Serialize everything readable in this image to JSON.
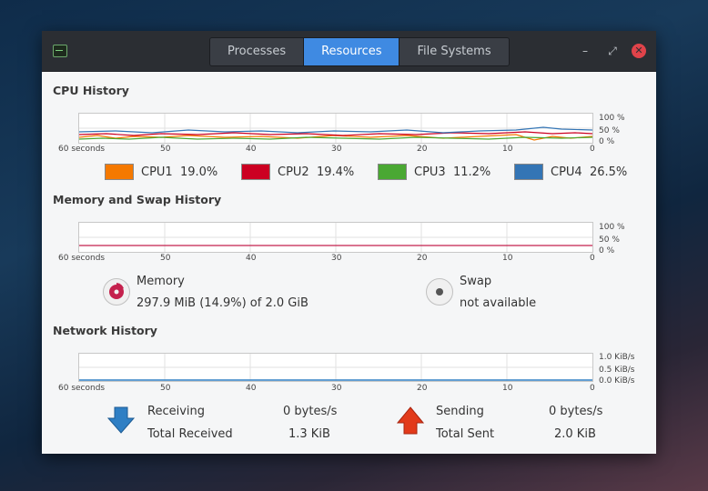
{
  "tabs": [
    {
      "label": "Processes",
      "active": false
    },
    {
      "label": "Resources",
      "active": true
    },
    {
      "label": "File Systems",
      "active": false
    }
  ],
  "window_controls": {
    "minimize": "–",
    "maximize": "⤢",
    "close": "✕"
  },
  "cpu": {
    "title": "CPU History",
    "x_labels": [
      "60 seconds",
      "50",
      "40",
      "30",
      "20",
      "10",
      "0"
    ],
    "y_labels": [
      "100 %",
      "50 %",
      "0 %"
    ],
    "legend": [
      {
        "name": "CPU1",
        "value": "19.0%",
        "color": "#f57900"
      },
      {
        "name": "CPU2",
        "value": "19.4%",
        "color": "#cc0022"
      },
      {
        "name": "CPU3",
        "value": "11.2%",
        "color": "#4aa833"
      },
      {
        "name": "CPU4",
        "value": "26.5%",
        "color": "#3475b5"
      }
    ]
  },
  "memory": {
    "title": "Memory and Swap History",
    "x_labels": [
      "60 seconds",
      "50",
      "40",
      "30",
      "20",
      "10",
      "0"
    ],
    "y_labels": [
      "100 %",
      "50 %",
      "0 %"
    ],
    "memory_label": "Memory",
    "memory_value": "297.9 MiB (14.9%) of 2.0 GiB",
    "memory_color": "#c4214d",
    "swap_label": "Swap",
    "swap_value": "not available"
  },
  "network": {
    "title": "Network History",
    "x_labels": [
      "60 seconds",
      "50",
      "40",
      "30",
      "20",
      "10",
      "0"
    ],
    "y_labels": [
      "1.0 KiB/s",
      "0.5 KiB/s",
      "0.0 KiB/s"
    ],
    "receiving_label": "Receiving",
    "receiving_value": "0 bytes/s",
    "total_received_label": "Total Received",
    "total_received_value": "1.3 KiB",
    "sending_label": "Sending",
    "sending_value": "0 bytes/s",
    "total_sent_label": "Total Sent",
    "total_sent_value": "2.0 KiB",
    "receive_color": "#2f7fc4",
    "send_color": "#e23a1a"
  }
}
